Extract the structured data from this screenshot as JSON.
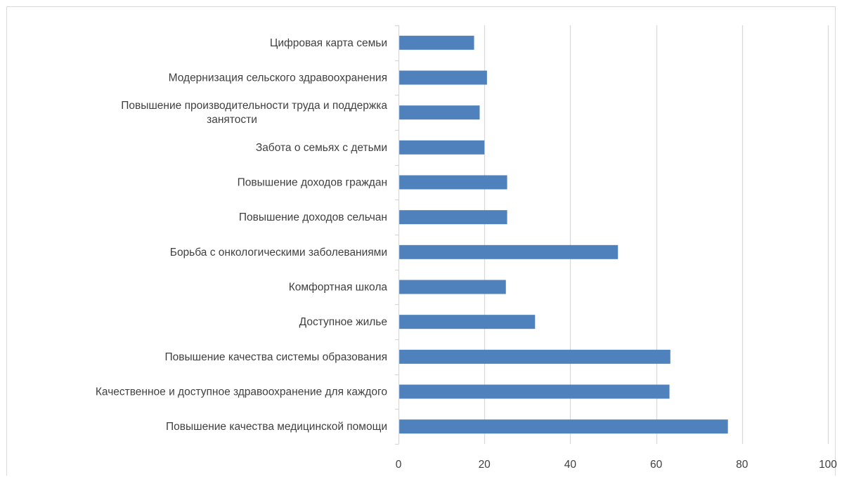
{
  "chart_data": {
    "type": "bar",
    "orientation": "horizontal",
    "categories": [
      "Цифровая карта семьи",
      "Модернизация сельского здравоохранения",
      "Повышение производительности труда и поддержка занятости",
      "Забота о семьях с детьми",
      "Повышение доходов граждан",
      "Повышение доходов сельчан",
      "Борьба с онкологическими заболеваниями",
      "Комфортная школа",
      "Доступное жилье",
      "Повышение качества системы образования",
      "Качественное и доступное здравоохранение для каждого",
      "Повышение качества медицинской помощи"
    ],
    "category_label_lines": [
      [
        "Цифровая карта семьи"
      ],
      [
        "Модернизация сельского здравоохранения"
      ],
      [
        "Повышение производительности труда и поддержка",
        "занятости"
      ],
      [
        "Забота о семьях с детьми"
      ],
      [
        "Повышение доходов граждан"
      ],
      [
        "Повышение доходов сельчан"
      ],
      [
        "Борьба с онкологическими заболеваниями"
      ],
      [
        "Комфортная школа"
      ],
      [
        "Доступное жилье"
      ],
      [
        "Повышение качества системы образования"
      ],
      [
        "Качественное и доступное здравоохранение для каждого"
      ],
      [
        "Повышение качества медицинской помощи"
      ]
    ],
    "values": [
      17.6,
      20.6,
      18.9,
      20.0,
      25.3,
      25.3,
      51.1,
      25.0,
      31.8,
      63.3,
      63.1,
      76.7
    ],
    "xlim": [
      0,
      100
    ],
    "xticks": [
      0,
      20,
      40,
      60,
      80,
      100
    ],
    "title": "",
    "xlabel": "",
    "ylabel": "",
    "grid": "vertical",
    "legend": "none",
    "bar_color": "#4f81bd",
    "grid_color": "#d9d9d9",
    "text_color": "#404040"
  }
}
